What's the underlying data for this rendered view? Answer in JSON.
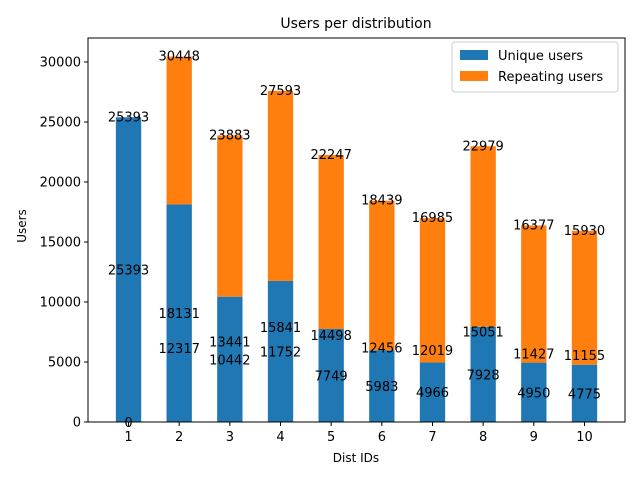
{
  "chart_data": {
    "type": "bar",
    "stacked": true,
    "title": "Users per distribution",
    "xlabel": "Dist IDs",
    "ylabel": "Users",
    "categories": [
      "1",
      "2",
      "3",
      "4",
      "5",
      "6",
      "7",
      "8",
      "9",
      "10"
    ],
    "series": [
      {
        "name": "Unique users",
        "color": "#1f77b4",
        "values": [
          25393,
          18131,
          10442,
          11752,
          7749,
          5983,
          4966,
          7928,
          4950,
          4775
        ]
      },
      {
        "name": "Repeating users",
        "color": "#ff7f0e",
        "values": [
          0,
          12317,
          13441,
          15841,
          14498,
          12456,
          12019,
          15051,
          11427,
          11155
        ]
      }
    ],
    "totals": [
      25393,
      30448,
      23883,
      27593,
      22247,
      18439,
      16985,
      22979,
      16377,
      15930
    ],
    "ylim": [
      0,
      32000
    ],
    "yticks": [
      "0",
      "5000",
      "10000",
      "15000",
      "20000",
      "25000",
      "30000"
    ],
    "legend": "top-right",
    "grid": false
  }
}
